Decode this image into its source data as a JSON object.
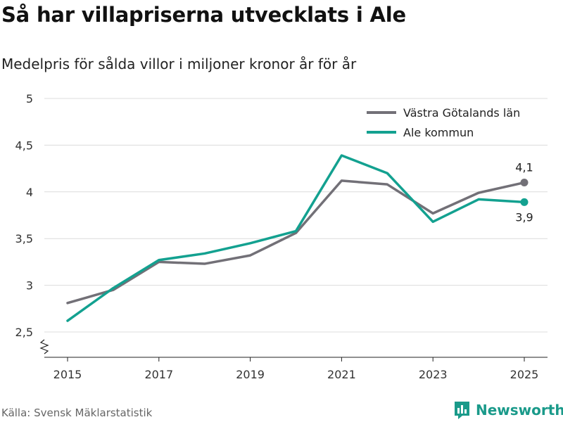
{
  "header": {
    "title": "Så har villapriserna utvecklats i Ale",
    "subtitle": "Medelpris för sålda villor i miljoner kronor år för år"
  },
  "chart_data": {
    "type": "line",
    "x": [
      2015,
      2016,
      2017,
      2018,
      2019,
      2020,
      2021,
      2022,
      2023,
      2024,
      2025
    ],
    "series": [
      {
        "name": "Västra Götalands län",
        "color": "#727077",
        "values": [
          2.81,
          2.95,
          3.25,
          3.23,
          3.32,
          3.56,
          4.12,
          4.08,
          3.77,
          3.99,
          4.1
        ],
        "end_label": "4,1"
      },
      {
        "name": "Ale kommun",
        "color": "#13a190",
        "values": [
          2.62,
          2.97,
          3.27,
          3.34,
          3.45,
          3.58,
          4.39,
          4.2,
          3.68,
          3.92,
          3.89
        ],
        "end_label": "3,9"
      }
    ],
    "y_ticks": [
      2.5,
      3,
      3.5,
      4,
      4.5,
      5
    ],
    "y_tick_labels": [
      "2,5",
      "3",
      "3,5",
      "4",
      "4,5",
      "5"
    ],
    "x_ticks": [
      2015,
      2017,
      2019,
      2021,
      2023,
      2025
    ],
    "x_tick_labels": [
      "2015",
      "2017",
      "2019",
      "2021",
      "2023",
      "2025"
    ],
    "ylim": [
      2.5,
      5
    ],
    "xlim": [
      2015,
      2025
    ],
    "legend_position": "top-right",
    "grid": true,
    "axis_break": true
  },
  "footer": {
    "source": "Källa: Svensk Mäklarstatistik",
    "brand": "Newsworthy",
    "brand_color": "#1a9a8a"
  }
}
